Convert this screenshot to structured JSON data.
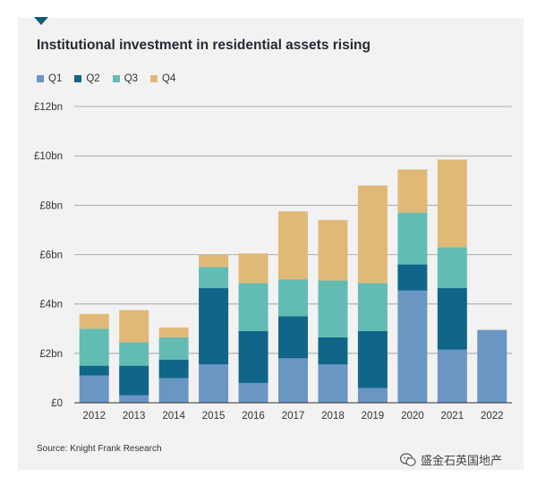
{
  "title": "Institutional investment in residential assets rising",
  "source": "Source: Knight Frank Research",
  "watermark": "盛金石英国地产",
  "chart_data": {
    "type": "bar",
    "stacked": true,
    "title": "Institutional investment in residential assets rising",
    "legend_position": "top-left",
    "grid": true,
    "categories": [
      "2012",
      "2013",
      "2014",
      "2015",
      "2016",
      "2017",
      "2018",
      "2019",
      "2020",
      "2021",
      "2022"
    ],
    "series": [
      {
        "name": "Q1",
        "color": "#6b96c4",
        "values": [
          1.1,
          0.3,
          1.0,
          1.55,
          0.8,
          1.8,
          1.55,
          0.6,
          4.55,
          2.15,
          2.95
        ]
      },
      {
        "name": "Q2",
        "color": "#0f6688",
        "values": [
          0.4,
          1.2,
          0.75,
          3.1,
          2.1,
          1.7,
          1.1,
          2.3,
          1.05,
          2.5,
          0
        ]
      },
      {
        "name": "Q3",
        "color": "#62bcb4",
        "values": [
          1.5,
          0.95,
          0.9,
          0.85,
          1.95,
          1.5,
          2.3,
          1.95,
          2.1,
          1.65,
          0
        ]
      },
      {
        "name": "Q4",
        "color": "#e1b977",
        "values": [
          0.6,
          1.3,
          0.4,
          0.5,
          1.2,
          2.75,
          2.45,
          3.95,
          1.75,
          3.55,
          0
        ]
      }
    ],
    "ylim": [
      0,
      12
    ],
    "y_ticks": [
      0,
      2,
      4,
      6,
      8,
      10,
      12
    ],
    "y_tick_labels": [
      "£0",
      "£2bn",
      "£4bn",
      "£6bn",
      "£8bn",
      "£10bn",
      "£12bn"
    ],
    "xlabel": "",
    "ylabel": ""
  }
}
